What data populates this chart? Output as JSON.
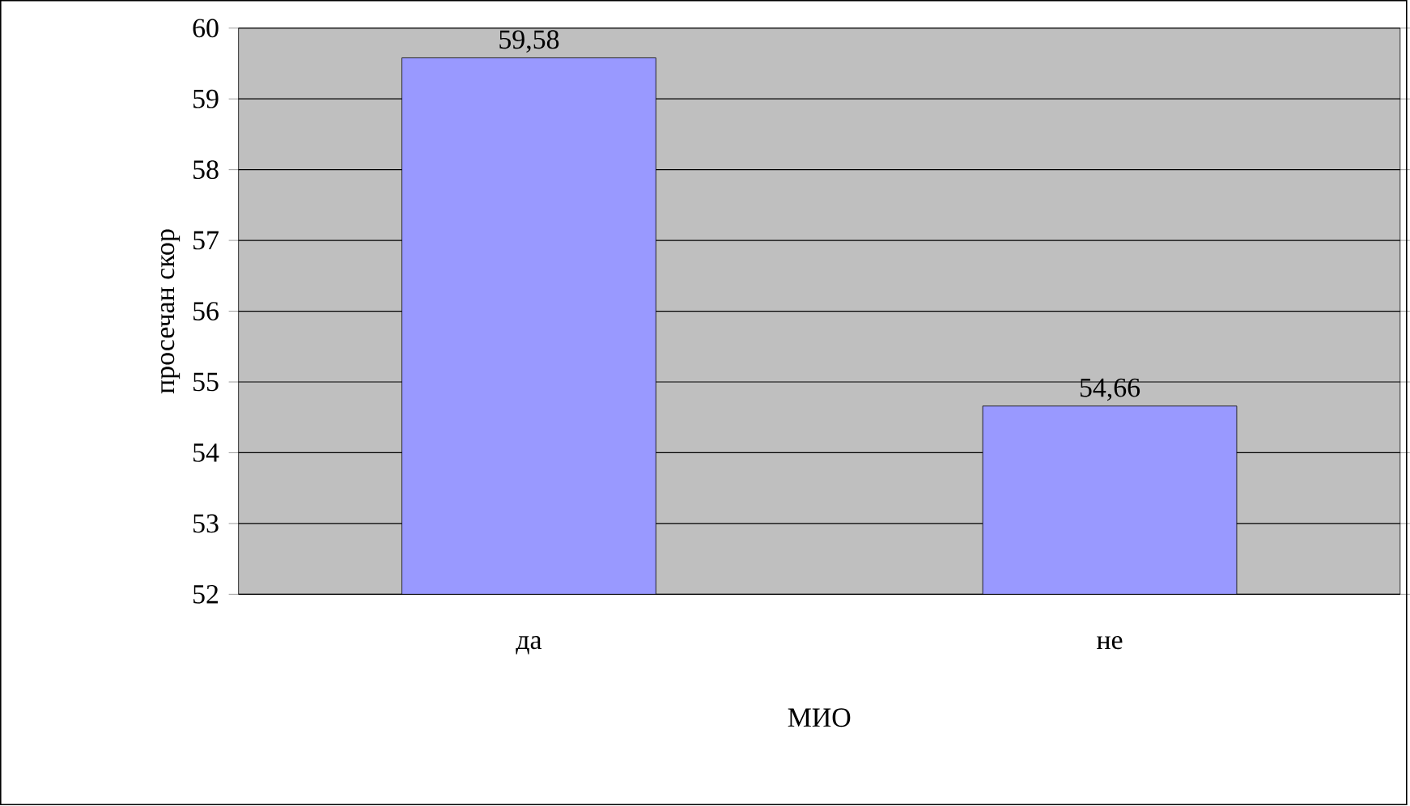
{
  "chart_data": {
    "type": "bar",
    "xlabel": "МИО",
    "ylabel": "просечан скор",
    "categories": [
      "да",
      "не"
    ],
    "values": [
      59.58,
      54.66
    ],
    "value_labels": [
      "59,58",
      "54,66"
    ],
    "color": "#9999ff",
    "ylim": [
      52,
      60
    ],
    "yticks": [
      52,
      53,
      54,
      55,
      56,
      57,
      58,
      59,
      60
    ],
    "grid": "y"
  }
}
